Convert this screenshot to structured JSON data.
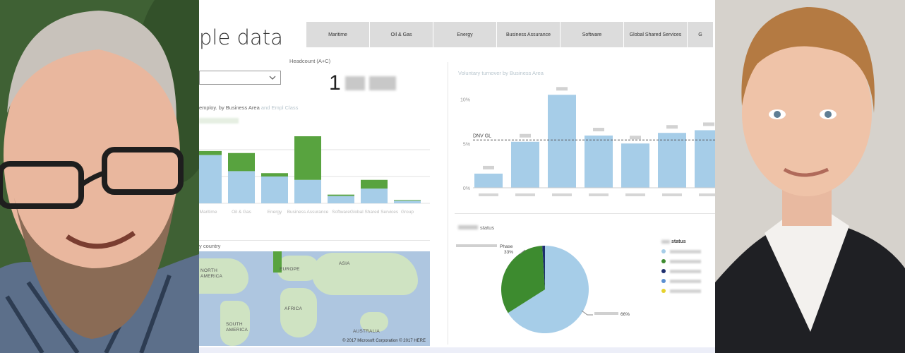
{
  "dashboard": {
    "title": "ple data",
    "tabs": [
      "Maritime",
      "Oil & Gas",
      "Energy",
      "Business Assurance",
      "Software",
      "Global Shared Services",
      "G"
    ],
    "headcount_label": "Headcount (A+C)",
    "headcount_value_visible": "1",
    "employees_chart_label": "employ. by Business Area",
    "employees_chart_label_faded": "and Empl Class",
    "map_label": "y country",
    "turnover_label": "Voluntary turnover by Business Area",
    "status_chart_label": "status",
    "legend_title": "status"
  },
  "employees_chart": {
    "categories": [
      "Maritime",
      "Oil & Gas",
      "Energy",
      "Business Assurance",
      "Software",
      "Global Shared Services",
      "Group"
    ],
    "series": [
      {
        "values": [
          72,
          48,
          40,
          35,
          11,
          22,
          4
        ]
      },
      {
        "values": [
          6,
          27,
          5,
          65,
          2,
          13,
          1
        ]
      }
    ],
    "colors": [
      "#a6cde8",
      "#58a33f"
    ]
  },
  "turnover_chart": {
    "y_ticks": [
      "10%",
      "5%",
      "0%"
    ],
    "reference_label": "DNV GL",
    "values": [
      1.6,
      5.2,
      10.5,
      5.9,
      5.0,
      6.2,
      6.5
    ],
    "ylim": [
      0,
      11
    ],
    "reference_value": 5.4,
    "color": "#a6cde8"
  },
  "status_pie": {
    "slices": [
      {
        "value": 66,
        "color": "#a6cde8"
      },
      {
        "value": 33,
        "color": "#3d8b2f"
      },
      {
        "value": 1,
        "color": "#1d2e6e"
      }
    ],
    "callout_phase": "Phase",
    "callout_phase_pct": "33%",
    "callout_rest_pct": "66%"
  },
  "legend": {
    "colors": [
      "#a6cde8",
      "#3d8b2f",
      "#1d2e6e",
      "#5b8fd1",
      "#e6d22e"
    ]
  },
  "map": {
    "labels": [
      "NORTH",
      "AMERICA",
      "EUROPE",
      "ASIA",
      "AFRICA",
      "SOUTH",
      "AMERICA",
      "AUSTRALIA"
    ],
    "copyright": "© 2017 Microsoft Corporation    © 2017 HERE"
  }
}
